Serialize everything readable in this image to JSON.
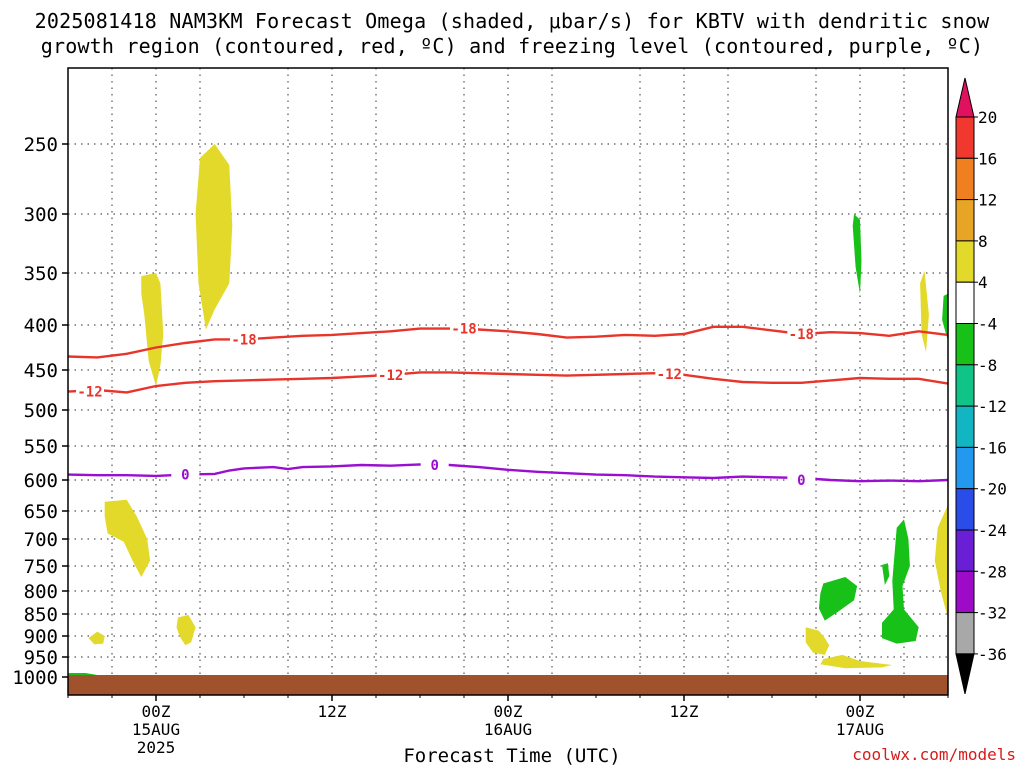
{
  "title_line1": "2025081418 NAM3KM Forecast Omega (shaded, μbar/s) for KBTV with dendritic snow",
  "title_line2": "growth region (contoured, red, ºC) and freezing level (contoured, purple, ºC)",
  "xlabel": "Forecast Time (UTC)",
  "credit": "coolwx.com/models",
  "chart_data": {
    "type": "heatmap",
    "x_ticks": [
      {
        "t": 0,
        "label": "00Z",
        "sub1": "15AUG",
        "sub2": "2025"
      },
      {
        "t": 12,
        "label": "12Z"
      },
      {
        "t": 24,
        "label": "00Z",
        "sub1": "16AUG"
      },
      {
        "t": 36,
        "label": "12Z"
      },
      {
        "t": 48,
        "label": "00Z",
        "sub1": "17AUG"
      }
    ],
    "xlim": [
      -6,
      54
    ],
    "ylim": [
      200,
      1000
    ],
    "y_ticks": [
      250,
      300,
      350,
      400,
      450,
      500,
      550,
      600,
      650,
      700,
      750,
      800,
      850,
      900,
      950,
      1000
    ],
    "grid": true,
    "contours": [
      {
        "label": "-18",
        "color": "#e8352b",
        "points": [
          [
            -6,
            435
          ],
          [
            -4,
            436
          ],
          [
            -2,
            432
          ],
          [
            0,
            425
          ],
          [
            2,
            420
          ],
          [
            4,
            416
          ],
          [
            6,
            416
          ],
          [
            8,
            414
          ],
          [
            10,
            412
          ],
          [
            12,
            411
          ],
          [
            14,
            409
          ],
          [
            16,
            407
          ],
          [
            18,
            404
          ],
          [
            20,
            404
          ],
          [
            22,
            405
          ],
          [
            24,
            407
          ],
          [
            26,
            410
          ],
          [
            28,
            414
          ],
          [
            30,
            413
          ],
          [
            32,
            411
          ],
          [
            34,
            412
          ],
          [
            36,
            410
          ],
          [
            38,
            402
          ],
          [
            40,
            402
          ],
          [
            42,
            406
          ],
          [
            44,
            410
          ],
          [
            46,
            408
          ],
          [
            48,
            409
          ],
          [
            50,
            412
          ],
          [
            52,
            407
          ],
          [
            54,
            411
          ]
        ],
        "label_at": [
          [
            6,
            416
          ],
          [
            21,
            404
          ],
          [
            44,
            410
          ]
        ]
      },
      {
        "label": "-12",
        "color": "#e8352b",
        "points": [
          [
            -6,
            477
          ],
          [
            -4,
            475
          ],
          [
            -2,
            478
          ],
          [
            0,
            470
          ],
          [
            2,
            466
          ],
          [
            4,
            464
          ],
          [
            6,
            463
          ],
          [
            8,
            462
          ],
          [
            10,
            461
          ],
          [
            12,
            460
          ],
          [
            14,
            458
          ],
          [
            16,
            456
          ],
          [
            18,
            453
          ],
          [
            20,
            453
          ],
          [
            22,
            454
          ],
          [
            24,
            455
          ],
          [
            26,
            456
          ],
          [
            28,
            457
          ],
          [
            30,
            456
          ],
          [
            32,
            455
          ],
          [
            34,
            454
          ],
          [
            36,
            456
          ],
          [
            38,
            461
          ],
          [
            40,
            465
          ],
          [
            42,
            466
          ],
          [
            44,
            466
          ],
          [
            46,
            463
          ],
          [
            48,
            460
          ],
          [
            50,
            461
          ],
          [
            52,
            461
          ],
          [
            54,
            467
          ]
        ],
        "label_at": [
          [
            -4.5,
            477
          ],
          [
            16,
            456
          ],
          [
            35,
            455
          ]
        ]
      },
      {
        "label": "0",
        "color": "#9a0fcf",
        "points": [
          [
            -6,
            592
          ],
          [
            -4,
            593
          ],
          [
            -2,
            593
          ],
          [
            0,
            594
          ],
          [
            2,
            592
          ],
          [
            4,
            591
          ],
          [
            5,
            586
          ],
          [
            6,
            583
          ],
          [
            8,
            581
          ],
          [
            9,
            584
          ],
          [
            10,
            581
          ],
          [
            12,
            580
          ],
          [
            14,
            578
          ],
          [
            16,
            579
          ],
          [
            18,
            577
          ],
          [
            20,
            578
          ],
          [
            22,
            581
          ],
          [
            24,
            585
          ],
          [
            26,
            588
          ],
          [
            28,
            590
          ],
          [
            30,
            592
          ],
          [
            32,
            593
          ],
          [
            34,
            595
          ],
          [
            36,
            596
          ],
          [
            38,
            597
          ],
          [
            40,
            595
          ],
          [
            42,
            596
          ],
          [
            44,
            597
          ],
          [
            46,
            600
          ],
          [
            48,
            602
          ],
          [
            50,
            601
          ],
          [
            52,
            602
          ],
          [
            54,
            600
          ]
        ],
        "label_at": [
          [
            2,
            592
          ],
          [
            19,
            578
          ],
          [
            44,
            600
          ]
        ]
      }
    ],
    "omega_shades": [
      {
        "value": 6,
        "points": [
          [
            -1,
            353
          ],
          [
            0,
            350
          ],
          [
            0.3,
            360
          ],
          [
            0.5,
            410
          ],
          [
            0.3,
            445
          ],
          [
            0,
            470
          ],
          [
            -0.5,
            440
          ],
          [
            -0.8,
            390
          ],
          [
            -1,
            370
          ]
        ]
      },
      {
        "value": 6,
        "points": [
          [
            3,
            260
          ],
          [
            4,
            250
          ],
          [
            5,
            265
          ],
          [
            5.2,
            310
          ],
          [
            5,
            360
          ],
          [
            4,
            385
          ],
          [
            3.4,
            405
          ],
          [
            2.9,
            360
          ],
          [
            2.7,
            300
          ]
        ]
      },
      {
        "value": 6,
        "points": [
          [
            -3.5,
            635
          ],
          [
            -2,
            632
          ],
          [
            -1.3,
            660
          ],
          [
            -0.6,
            700
          ],
          [
            -0.4,
            740
          ],
          [
            -1,
            772
          ],
          [
            -1.6,
            740
          ],
          [
            -2.2,
            705
          ],
          [
            -3.3,
            690
          ],
          [
            -3.5,
            660
          ]
        ]
      },
      {
        "value": 6,
        "points": [
          [
            1.5,
            858
          ],
          [
            2.2,
            852
          ],
          [
            2.7,
            880
          ],
          [
            2.4,
            915
          ],
          [
            2,
            922
          ],
          [
            1.6,
            900
          ],
          [
            1.4,
            880
          ]
        ]
      },
      {
        "value": 6,
        "points": [
          [
            -4.6,
            905
          ],
          [
            -4,
            890
          ],
          [
            -3.5,
            900
          ],
          [
            -3.6,
            918
          ],
          [
            -4.2,
            920
          ]
        ]
      },
      {
        "value": -6,
        "points": [
          [
            47.6,
            300
          ],
          [
            48,
            305
          ],
          [
            48.1,
            340
          ],
          [
            48,
            370
          ],
          [
            47.7,
            345
          ],
          [
            47.5,
            310
          ]
        ]
      },
      {
        "value": -6,
        "points": [
          [
            45.5,
            785
          ],
          [
            47,
            772
          ],
          [
            47.8,
            790
          ],
          [
            47.6,
            820
          ],
          [
            46.5,
            845
          ],
          [
            45.6,
            865
          ],
          [
            45.2,
            838
          ],
          [
            45.3,
            805
          ]
        ]
      },
      {
        "value": -6,
        "points": [
          [
            50.5,
            680
          ],
          [
            51,
            665
          ],
          [
            51.3,
            700
          ],
          [
            51.4,
            750
          ],
          [
            50.9,
            790
          ],
          [
            51,
            840
          ],
          [
            52,
            880
          ],
          [
            51.8,
            912
          ],
          [
            50.5,
            918
          ],
          [
            49.5,
            905
          ],
          [
            49.5,
            870
          ],
          [
            50.3,
            840
          ],
          [
            50.2,
            780
          ]
        ]
      },
      {
        "value": -6,
        "points": [
          [
            49.5,
            748
          ],
          [
            49.9,
            745
          ],
          [
            50,
            770
          ],
          [
            49.7,
            788
          ]
        ]
      },
      {
        "value": -6,
        "points": [
          [
            53.7,
            372
          ],
          [
            54,
            370
          ],
          [
            54,
            418
          ],
          [
            53.6,
            395
          ]
        ]
      },
      {
        "value": 6,
        "points": [
          [
            44.3,
            880
          ],
          [
            45.2,
            888
          ],
          [
            45.6,
            905
          ],
          [
            45.9,
            922
          ],
          [
            45.6,
            945
          ],
          [
            44.8,
            940
          ],
          [
            44.3,
            915
          ]
        ]
      },
      {
        "value": 6,
        "points": [
          [
            45.5,
            955
          ],
          [
            46.8,
            945
          ],
          [
            48,
            960
          ],
          [
            50.2,
            970
          ],
          [
            49.5,
            976
          ],
          [
            47,
            978
          ],
          [
            45.3,
            968
          ]
        ]
      },
      {
        "value": 6,
        "points": [
          [
            52.1,
            360
          ],
          [
            52.4,
            348
          ],
          [
            52.7,
            390
          ],
          [
            52.5,
            430
          ],
          [
            52.2,
            410
          ]
        ]
      },
      {
        "value": 6,
        "points": [
          [
            53.3,
            680
          ],
          [
            54,
            640
          ],
          [
            54,
            860
          ],
          [
            53.5,
            800
          ],
          [
            53.1,
            740
          ]
        ]
      },
      {
        "value": -6,
        "points": [
          [
            -6,
            990
          ],
          [
            -4.8,
            990
          ],
          [
            -4,
            995
          ],
          [
            -6,
            996
          ]
        ]
      }
    ],
    "terrain_color": "#a0522d",
    "terrain_top_hpa": 995,
    "colorbar": {
      "labels": [
        "20",
        "16",
        "12",
        "8",
        "4",
        "-4",
        "-8",
        "-12",
        "-16",
        "-20",
        "-24",
        "-28",
        "-32",
        "-36"
      ],
      "colors": [
        "#e0115f",
        "#f0382e",
        "#f07f1f",
        "#e8a525",
        "#e3d92a",
        "#ffffff",
        "#18c118",
        "#10c488",
        "#11b6c2",
        "#2299ee",
        "#2a4ce8",
        "#6a1fd6",
        "#9d0bc9",
        "#a8a8a8",
        "#000000"
      ]
    }
  }
}
